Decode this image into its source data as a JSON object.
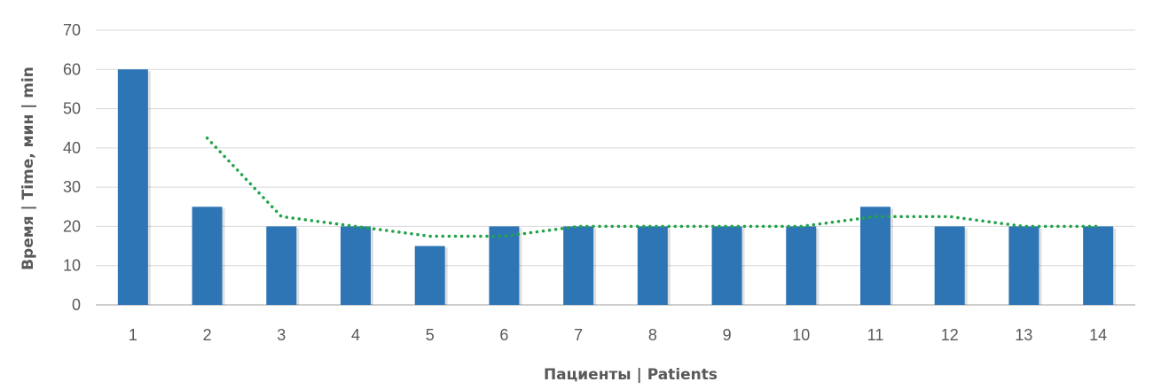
{
  "chart_data": {
    "type": "bar",
    "title": "",
    "xlabel": "Пациенты | Patients",
    "ylabel": "Время | Time, мин | min",
    "ylim": [
      0,
      70
    ],
    "yticks": [
      0,
      10,
      20,
      30,
      40,
      50,
      60,
      70
    ],
    "grid": true,
    "legend": "none",
    "categories": [
      "1",
      "2",
      "3",
      "4",
      "5",
      "6",
      "7",
      "8",
      "9",
      "10",
      "11",
      "12",
      "13",
      "14"
    ],
    "values": [
      60,
      25,
      20,
      20,
      15,
      20,
      20,
      20,
      20,
      20,
      25,
      20,
      20,
      20
    ],
    "trendline": {
      "type": "moving-average",
      "period": 2,
      "style": "dotted",
      "values": [
        null,
        42.5,
        22.5,
        20,
        17.5,
        17.5,
        20,
        20,
        20,
        20,
        22.5,
        22.5,
        20,
        20
      ]
    },
    "colors": {
      "bar": "#2E75B6",
      "trendline": "#22A34A",
      "grid": "#D9D9D9",
      "text": "#595959"
    }
  }
}
